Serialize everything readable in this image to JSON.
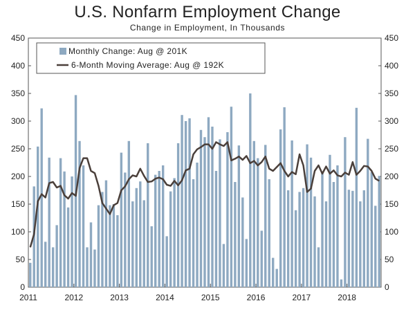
{
  "colors": {
    "bar": "#8ea9c1",
    "line": "#4a3f3a",
    "axis": "#555555",
    "text": "#222222"
  },
  "chart_data": {
    "type": "bar",
    "title": "U.S. Nonfarm Employment Change",
    "subtitle": "Change in Employment, In Thousands",
    "ylim": [
      0,
      450
    ],
    "yticks": [
      0,
      50,
      100,
      150,
      200,
      250,
      300,
      350,
      400,
      450
    ],
    "year_labels": [
      "2011",
      "2012",
      "2013",
      "2014",
      "2015",
      "2016",
      "2017",
      "2018"
    ],
    "series": [
      {
        "name": "Monthly Change: Aug @ 201K",
        "type": "bar",
        "values": [
          44,
          182,
          254,
          323,
          82,
          234,
          72,
          112,
          233,
          209,
          144,
          200,
          347,
          264,
          220,
          72,
          117,
          68,
          148,
          172,
          193,
          148,
          150,
          130,
          243,
          207,
          264,
          155,
          179,
          191,
          157,
          260,
          110,
          203,
          210,
          220,
          92,
          173,
          197,
          260,
          311,
          300,
          305,
          195,
          225,
          284,
          271,
          307,
          290,
          210,
          267,
          78,
          280,
          326,
          190,
          256,
          162,
          87,
          350,
          264,
          233,
          102,
          257,
          195,
          53,
          33,
          285,
          325,
          175,
          265,
          139,
          172,
          179,
          258,
          234,
          164,
          72,
          209,
          155,
          239,
          190,
          220,
          14,
          271,
          176,
          174,
          324,
          155,
          175,
          268,
          208,
          147,
          201
        ],
        "color": "#8ea9c1"
      },
      {
        "name": "6-Month Moving Average: Aug @ 192K",
        "type": "line",
        "values": [
          72,
          96,
          155,
          168,
          162,
          188,
          190,
          180,
          183,
          166,
          160,
          170,
          165,
          215,
          233,
          233,
          210,
          206,
          183,
          152,
          142,
          132,
          148,
          152,
          175,
          182,
          195,
          202,
          200,
          214,
          201,
          190,
          191,
          196,
          198,
          195,
          185,
          183,
          192,
          184,
          193,
          211,
          214,
          240,
          249,
          253,
          258,
          258,
          250,
          262,
          258,
          255,
          262,
          229,
          232,
          236,
          230,
          237,
          224,
          228,
          220,
          226,
          236,
          214,
          210,
          217,
          224,
          210,
          200,
          208,
          204,
          240,
          220,
          172,
          178,
          210,
          220,
          205,
          218,
          205,
          211,
          202,
          200,
          207,
          203,
          226,
          203,
          210,
          219,
          218,
          210,
          196,
          192
        ],
        "color": "#4a3f3a"
      }
    ]
  }
}
